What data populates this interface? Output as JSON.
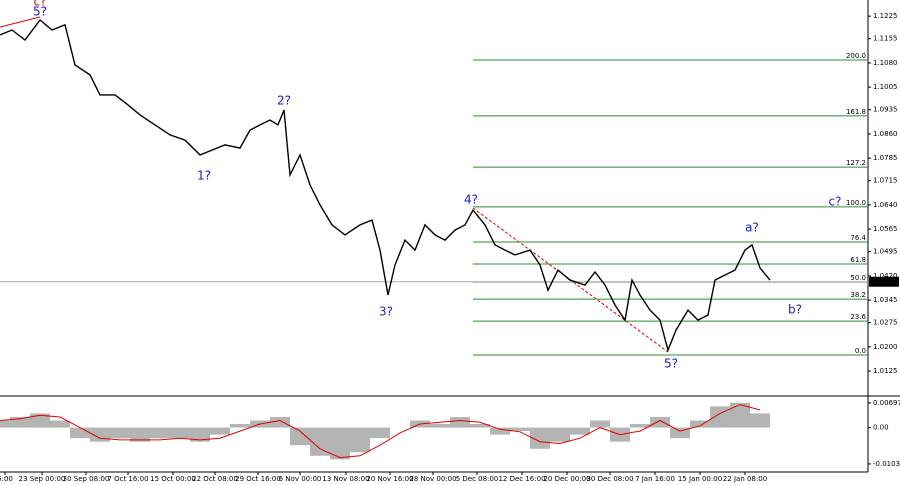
{
  "chart_data": [
    {
      "type": "line",
      "color": "#000000",
      "x": [
        0,
        12,
        25,
        40,
        52,
        65,
        75,
        90,
        100,
        115,
        128,
        140,
        155,
        170,
        185,
        200,
        212,
        225,
        240,
        250,
        260,
        270,
        278,
        284,
        290,
        300,
        310,
        320,
        332,
        345,
        360,
        372,
        380,
        388,
        395,
        405,
        415,
        425,
        435,
        445,
        455,
        465,
        473,
        485,
        495,
        505,
        515,
        530,
        540,
        548,
        558,
        570,
        585,
        595,
        605,
        615,
        625,
        632,
        640,
        650,
        660,
        668,
        676,
        688,
        698,
        708,
        715,
        725,
        735,
        745,
        752,
        760,
        770
      ],
      "values": [
        1.1167,
        1.1182,
        1.1151,
        1.1213,
        1.1182,
        1.1198,
        1.1074,
        1.1043,
        1.0981,
        1.0981,
        1.095,
        1.0919,
        1.0888,
        1.0857,
        1.0841,
        1.0795,
        1.081,
        1.0826,
        1.0816,
        1.0872,
        1.0888,
        1.0903,
        1.0888,
        1.0934,
        1.0733,
        1.0795,
        1.0702,
        1.064,
        1.0578,
        1.0547,
        1.0578,
        1.0593,
        1.05,
        1.0361,
        1.0454,
        1.0531,
        1.05,
        1.0578,
        1.0547,
        1.0531,
        1.0562,
        1.0578,
        1.0624,
        1.0578,
        1.0516,
        1.05,
        1.0485,
        1.05,
        1.0454,
        1.0376,
        1.0438,
        1.0407,
        1.0392,
        1.0432,
        1.0392,
        1.033,
        1.0283,
        1.0407,
        1.0361,
        1.0314,
        1.0283,
        1.019,
        1.0252,
        1.0314,
        1.0283,
        1.0299,
        1.0407,
        1.0423,
        1.0438,
        1.05,
        1.0516,
        1.0445,
        1.0407
      ],
      "xlim": [
        0,
        868
      ],
      "ylim": [
        1.0051,
        1.1275
      ],
      "yticks": [
        1.1225,
        {
          "value": 1.1155,
          "label": "1.1155"
        },
        {
          "value": 1.108,
          "label": "1.1080"
        },
        {
          "value": 1.1005,
          "label": "1.1005"
        },
        {
          "value": 1.0935,
          "label": "1.0935"
        },
        {
          "value": 1.086,
          "label": "1.0860"
        },
        {
          "value": 1.0785,
          "label": "1.0785"
        },
        {
          "value": 1.0715,
          "label": "1.0715"
        },
        {
          "value": 1.064,
          "label": "1.0640"
        },
        {
          "value": 1.0565,
          "label": "1.0565"
        },
        {
          "value": 1.0495,
          "label": "1.0495"
        },
        {
          "value": 1.042,
          "label": "1.0420"
        },
        {
          "value": 1.0345,
          "label": "1.0345"
        },
        {
          "value": 1.0275,
          "label": "1.0275"
        },
        {
          "value": 1.02,
          "label": "1.0200"
        },
        {
          "value": 1.0125,
          "label": "1.0125"
        }
      ],
      "current_price": 1.0402,
      "fib_color": "#2e8b2e",
      "fib_levels": [
        {
          "label": "200.0",
          "value": 1.1089
        },
        {
          "label": "161.8",
          "value": 1.0916
        },
        {
          "label": "127.2",
          "value": 1.0757
        },
        {
          "label": "100.0",
          "value": 1.0634
        },
        {
          "label": "76.4",
          "value": 1.0525
        },
        {
          "label": "61.8",
          "value": 1.0457
        },
        {
          "label": "50.0",
          "value": 1.0401
        },
        {
          "label": "38.2",
          "value": 1.0348
        },
        {
          "label": "23.6",
          "value": 1.028
        },
        {
          "label": "0.0",
          "value": 1.0175
        }
      ],
      "annotations": [
        {
          "text": "c?",
          "x": 40,
          "y": 1.1269,
          "color": "#e00000"
        },
        {
          "text": "5?",
          "x": 40,
          "y": 1.1238,
          "color": "#1c1ccc"
        },
        {
          "text": "2?",
          "x": 284,
          "y": 1.0962,
          "color": "#1c1ccc"
        },
        {
          "text": "1?",
          "x": 204,
          "y": 1.073,
          "color": "#1c1ccc"
        },
        {
          "text": "3?",
          "x": 386,
          "y": 1.0308,
          "color": "#1c1ccc"
        },
        {
          "text": "4?",
          "x": 471,
          "y": 1.0655,
          "color": "#1c1ccc"
        },
        {
          "text": "5?",
          "x": 671,
          "y": 1.0147,
          "color": "#1c1ccc"
        },
        {
          "text": "a?",
          "x": 752,
          "y": 1.0568,
          "color": "#1c1ccc"
        },
        {
          "text": "b?",
          "x": 795,
          "y": 1.0314,
          "color": "#1c1ccc"
        },
        {
          "text": "c?",
          "x": 835,
          "y": 1.0649,
          "color": "#1c1ccc"
        }
      ]
    },
    {
      "type": "bar",
      "color": "#b4b4b4",
      "x": [
        0,
        20,
        40,
        60,
        80,
        100,
        120,
        140,
        160,
        180,
        200,
        220,
        240,
        260,
        280,
        300,
        320,
        340,
        360,
        380,
        400,
        420,
        440,
        460,
        480,
        500,
        520,
        540,
        560,
        580,
        600,
        620,
        640,
        660,
        680,
        700,
        720,
        740,
        760
      ],
      "values": [
        0.002,
        0.003,
        0.004,
        0.002,
        -0.003,
        -0.004,
        -0.003,
        -0.004,
        -0.003,
        -0.003,
        -0.004,
        -0.002,
        0.001,
        0.002,
        0.003,
        -0.005,
        -0.008,
        -0.009,
        -0.007,
        -0.003,
        0.0,
        0.002,
        0.001,
        0.003,
        0.001,
        -0.002,
        -0.001,
        -0.006,
        -0.004,
        -0.002,
        0.002,
        -0.004,
        0.001,
        0.003,
        -0.003,
        0.002,
        0.006,
        0.007,
        0.004
      ],
      "signal": {
        "color": "#e00000",
        "values": [
          0.002,
          0.0025,
          0.0035,
          0.003,
          0.0,
          -0.003,
          -0.0035,
          -0.0035,
          -0.0035,
          -0.003,
          -0.0035,
          -0.003,
          -0.001,
          0.001,
          0.002,
          -0.001,
          -0.006,
          -0.0085,
          -0.008,
          -0.005,
          -0.0015,
          0.001,
          0.0015,
          0.002,
          0.0015,
          -0.0005,
          -0.0012,
          -0.004,
          -0.0045,
          -0.003,
          0.0,
          -0.002,
          -0.001,
          0.002,
          -0.001,
          0.0005,
          0.004,
          0.0065,
          0.005
        ]
      },
      "xlim": [
        0,
        868
      ],
      "ylim": [
        -0.0123,
        0.00837
      ],
      "yticks": [
        0.00697,
        {
          "value": 0,
          "label": "0.00"
        },
        -0.0103
      ],
      "xticks": [
        {
          "value": 5,
          "label": "6:00"
        },
        {
          "value": 42,
          "label": "23 Sep 00:00"
        },
        {
          "value": 86,
          "label": "30 Sep 08:00"
        },
        {
          "value": 128,
          "label": "7 Oct 16:00"
        },
        {
          "value": 173,
          "label": "15 Oct 00:00"
        },
        {
          "value": 215,
          "label": "22 Oct 08:00"
        },
        {
          "value": 258,
          "label": "29 Oct 16:00"
        },
        {
          "value": 300,
          "label": "6 Nov 00:00"
        },
        {
          "value": 346,
          "label": "13 Nov 08:00"
        },
        {
          "value": 390,
          "label": "20 Nov 16:00"
        },
        {
          "value": 433,
          "label": "28 Nov 00:00"
        },
        {
          "value": 477,
          "label": "5 Dec 08:00"
        },
        {
          "value": 522,
          "label": "12 Dec 16:00"
        },
        {
          "value": 567,
          "label": "20 Dec 00:00"
        },
        {
          "value": 610,
          "label": "30 Dec 08:00"
        },
        {
          "value": 655,
          "label": "7 Jan 16:00"
        },
        {
          "value": 700,
          "label": "15 Jan 00:00"
        },
        {
          "value": 745,
          "label": "22 Jan 08:00"
        }
      ]
    }
  ]
}
